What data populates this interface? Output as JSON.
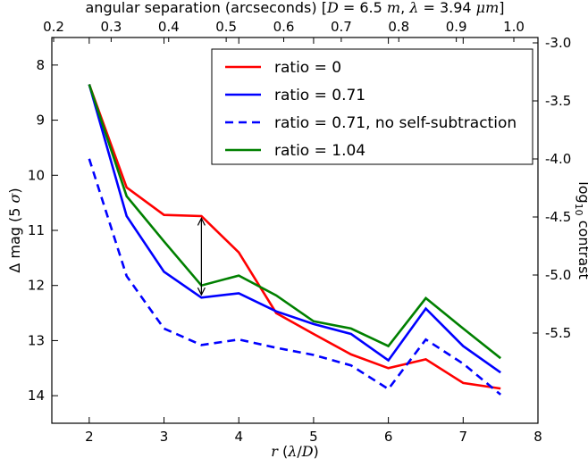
{
  "chart_data": {
    "type": "line",
    "xlabel": "r (λ/D)",
    "ylabel_left": "Δ mag (5 σ)",
    "ylabel_right": "log₁₀ contrast",
    "xlabel_top": "angular separation (arcseconds) [D = 6.5 m, λ = 3.94 μm]",
    "xlim": [
      1.5,
      8.0
    ],
    "ylim_left": [
      7.5,
      14.5
    ],
    "left_inverted": true,
    "xticks": [
      "2",
      "3",
      "4",
      "5",
      "6",
      "7",
      "8"
    ],
    "yticks_left": [
      "8",
      "9",
      "10",
      "11",
      "12",
      "13",
      "14"
    ],
    "xticks_top": [
      "0.2",
      "0.3",
      "0.4",
      "0.5",
      "0.6",
      "0.7",
      "0.8",
      "0.9",
      "1.0"
    ],
    "yticks_right": [
      "-3.0",
      "-3.5",
      "-4.0",
      "-4.5",
      "-5.0",
      "-5.5"
    ],
    "legend_position": "top-right",
    "x": [
      2,
      2.5,
      3,
      3.5,
      4,
      4.5,
      5,
      5.5,
      6,
      6.5,
      7,
      7.5
    ],
    "series": [
      {
        "name": "ratio = 0",
        "color": "#ff0000",
        "dash": false,
        "values": [
          8.35,
          10.22,
          10.72,
          10.74,
          11.4,
          12.5,
          12.88,
          13.25,
          13.5,
          13.34,
          13.77,
          13.87
        ]
      },
      {
        "name": "ratio = 0.71",
        "color": "#0000ff",
        "dash": false,
        "values": [
          8.35,
          10.74,
          11.75,
          12.22,
          12.14,
          12.47,
          12.7,
          12.88,
          13.36,
          12.42,
          13.1,
          13.58
        ]
      },
      {
        "name": "ratio = 0.71, no self-subtraction",
        "color": "#0000ff",
        "dash": true,
        "values": [
          9.7,
          11.83,
          12.78,
          13.08,
          12.98,
          13.13,
          13.26,
          13.45,
          13.88,
          12.98,
          13.42,
          13.98
        ]
      },
      {
        "name": "ratio = 1.04",
        "color": "#008000",
        "dash": false,
        "values": [
          8.35,
          10.38,
          11.2,
          12.0,
          11.82,
          12.18,
          12.65,
          12.78,
          13.1,
          12.23,
          12.78,
          13.32
        ]
      }
    ],
    "annotations": [
      {
        "type": "double-arrow",
        "x": 3.5,
        "y_from": 10.78,
        "y_to": 12.17
      }
    ]
  }
}
